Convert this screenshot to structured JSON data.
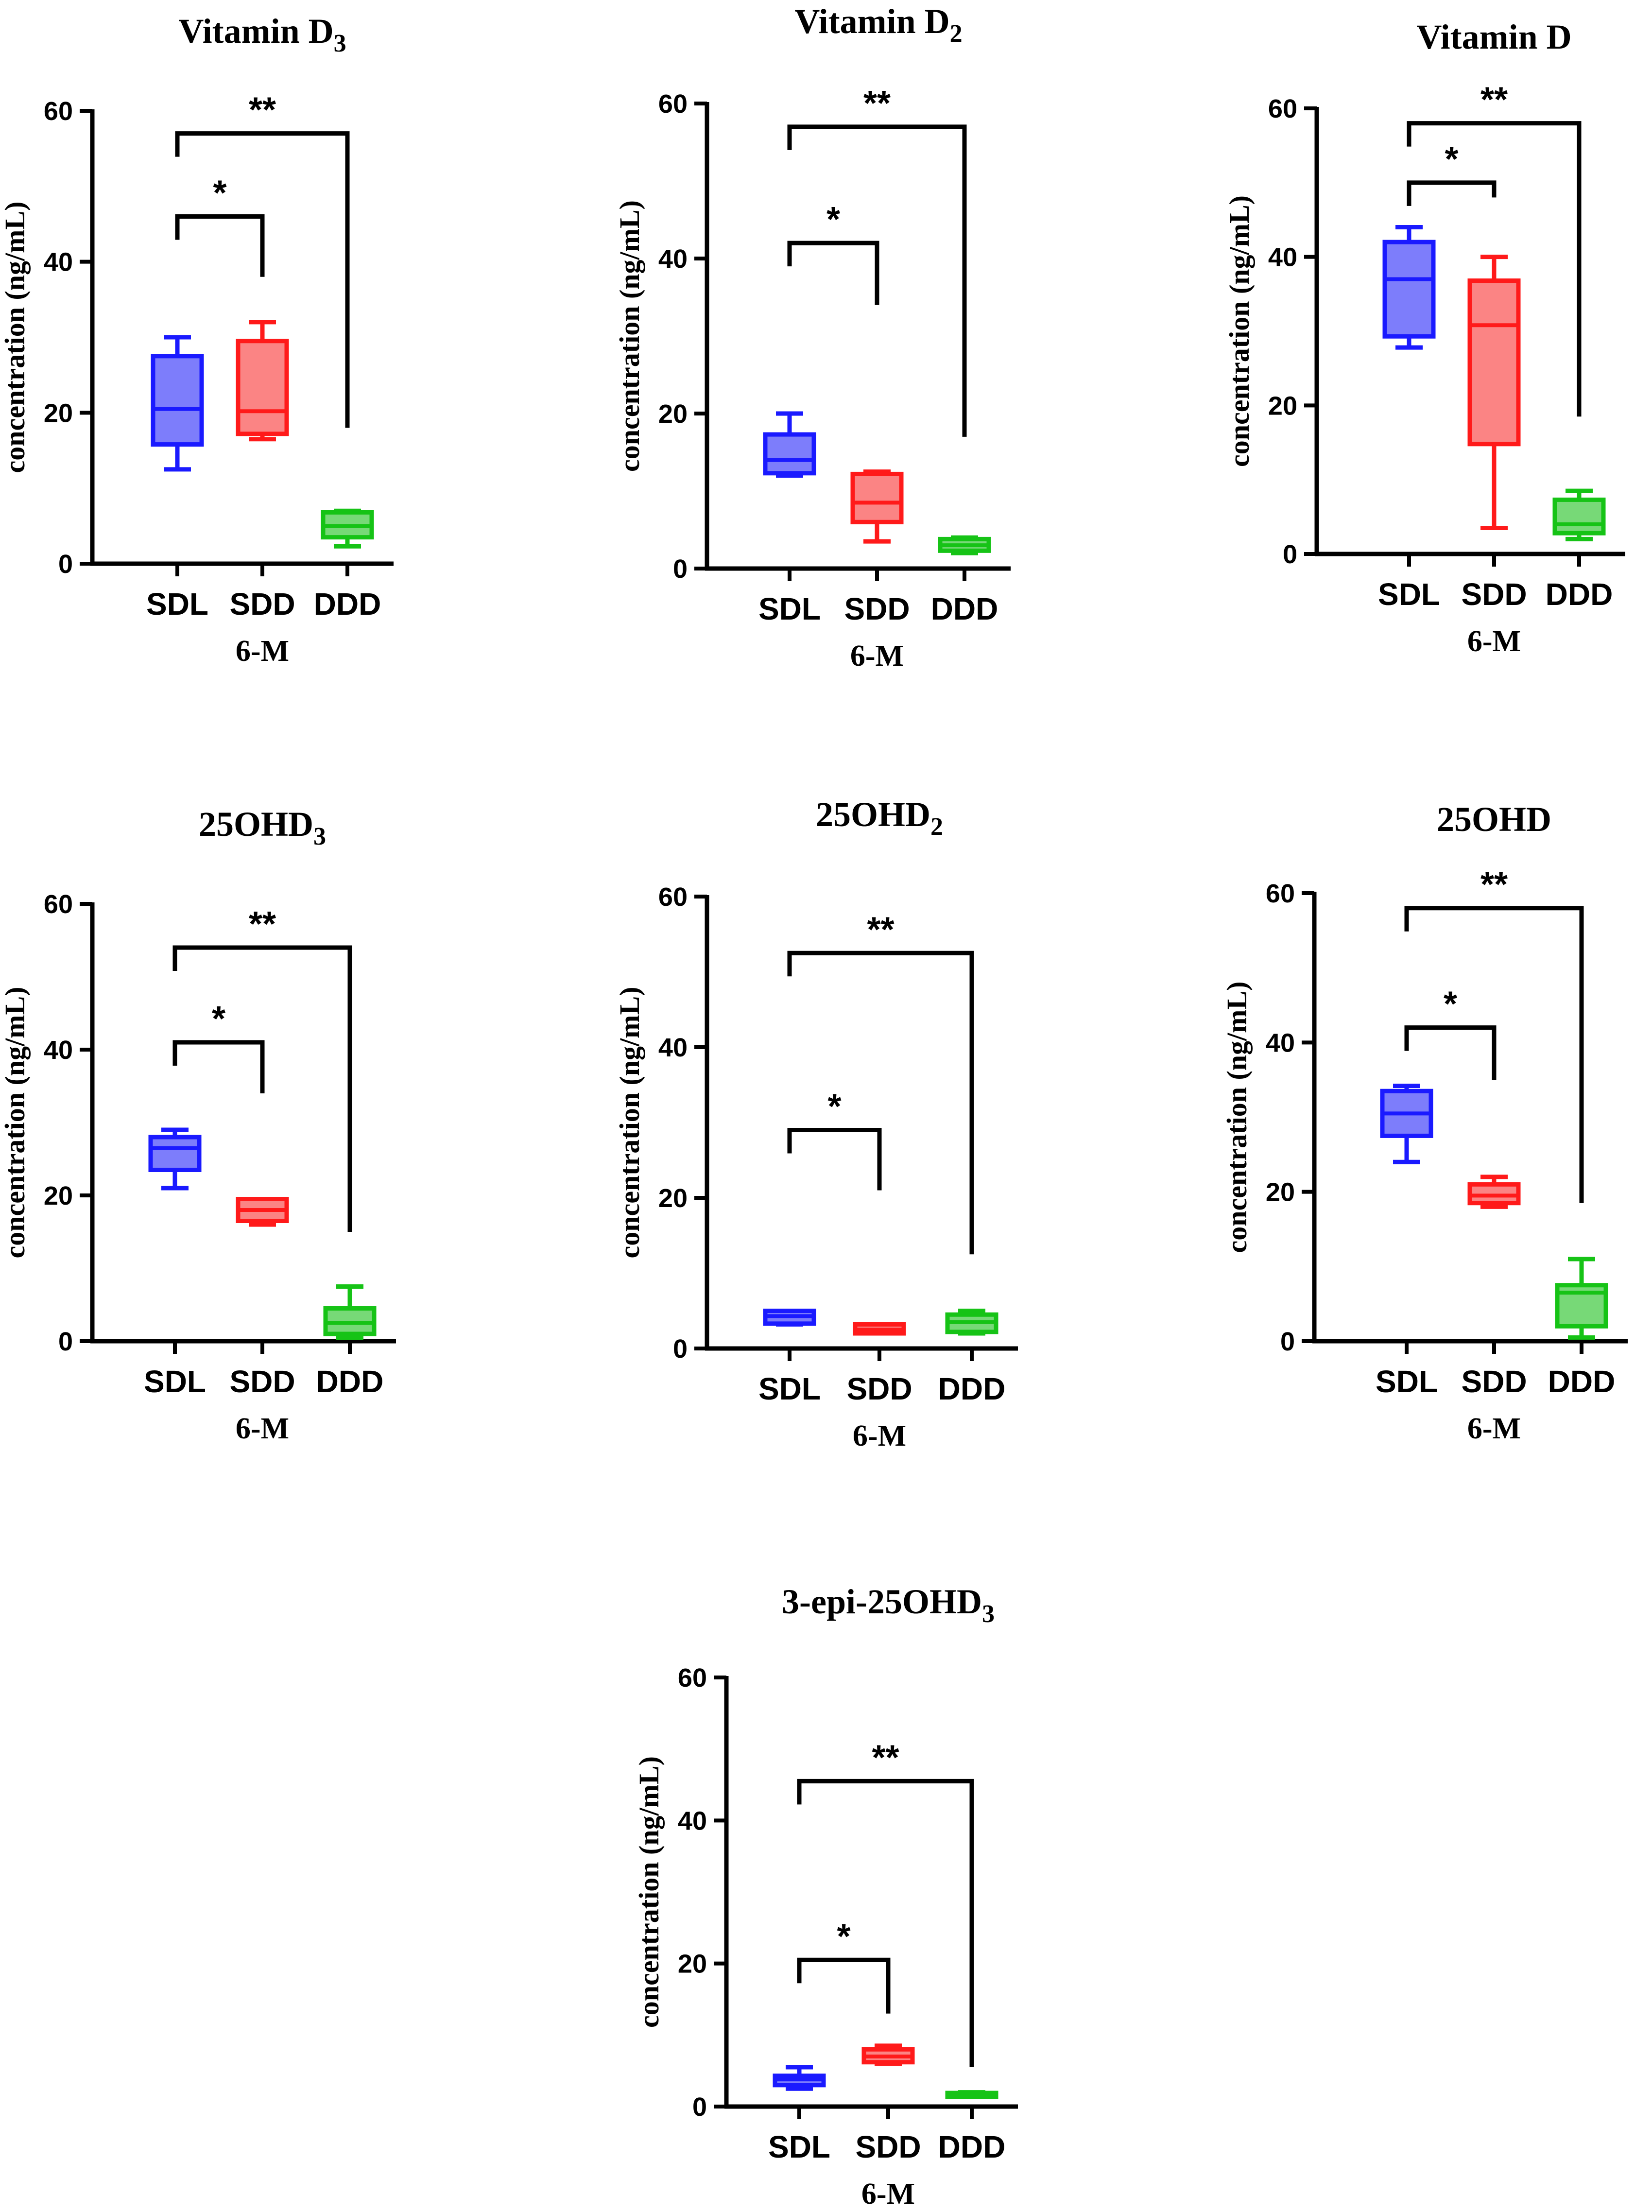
{
  "chart_data": [
    {
      "type": "box",
      "title": "Vitamin D",
      "title_sub": "3",
      "ylabel": "concentration (ng/mL)",
      "xlabel": "6-M",
      "ylim": [
        0,
        60
      ],
      "yticks": [
        0,
        20,
        40,
        60
      ],
      "categories": [
        "SDL",
        "SDD",
        "DDD"
      ],
      "boxes": [
        {
          "group": "SDL",
          "min": 12.5,
          "q1": 15.8,
          "median": 20.5,
          "q3": 27.5,
          "max": 30.0
        },
        {
          "group": "SDD",
          "min": 16.5,
          "q1": 17.2,
          "median": 20.2,
          "q3": 29.5,
          "max": 32.0
        },
        {
          "group": "DDD",
          "min": 2.3,
          "q1": 3.5,
          "median": 5.0,
          "q3": 6.8,
          "max": 7.0
        }
      ],
      "significance": [
        {
          "from": "SDL",
          "to": "SDD",
          "label": "*",
          "y": 46,
          "right_drop": 38
        },
        {
          "from": "SDL",
          "to": "DDD",
          "label": "**",
          "y": 57,
          "right_drop": 18
        }
      ]
    },
    {
      "type": "box",
      "title": "Vitamin D",
      "title_sub": "2",
      "ylabel": "concentration (ng/mL)",
      "xlabel": "6-M",
      "ylim": [
        0,
        60
      ],
      "yticks": [
        0,
        20,
        40,
        60
      ],
      "categories": [
        "SDL",
        "SDD",
        "DDD"
      ],
      "boxes": [
        {
          "group": "SDL",
          "min": 12.0,
          "q1": 12.3,
          "median": 14.0,
          "q3": 17.3,
          "max": 20.0
        },
        {
          "group": "SDD",
          "min": 3.5,
          "q1": 6.0,
          "median": 8.5,
          "q3": 12.2,
          "max": 12.5
        },
        {
          "group": "DDD",
          "min": 2.0,
          "q1": 2.3,
          "median": 3.0,
          "q3": 3.8,
          "max": 4.0
        }
      ],
      "significance": [
        {
          "from": "SDL",
          "to": "SDD",
          "label": "*",
          "y": 42,
          "right_drop": 34
        },
        {
          "from": "SDL",
          "to": "DDD",
          "label": "**",
          "y": 57,
          "right_drop": 17
        }
      ]
    },
    {
      "type": "box",
      "title": "Vitamin D",
      "title_sub": "",
      "ylabel": "concentration (ng/mL)",
      "xlabel": "6-M",
      "ylim": [
        0,
        60
      ],
      "yticks": [
        0,
        20,
        40,
        60
      ],
      "categories": [
        "SDL",
        "SDD",
        "DDD"
      ],
      "boxes": [
        {
          "group": "SDL",
          "min": 27.8,
          "q1": 29.3,
          "median": 37.0,
          "q3": 42.0,
          "max": 44.0
        },
        {
          "group": "SDD",
          "min": 3.5,
          "q1": 14.8,
          "median": 30.8,
          "q3": 36.8,
          "max": 40.0
        },
        {
          "group": "DDD",
          "min": 2.0,
          "q1": 2.8,
          "median": 4.0,
          "q3": 7.3,
          "max": 8.5
        }
      ],
      "significance": [
        {
          "from": "SDL",
          "to": "SDD",
          "label": "*",
          "y": 50,
          "right_drop": 48
        },
        {
          "from": "SDL",
          "to": "DDD",
          "label": "**",
          "y": 58,
          "right_drop": 18.5
        }
      ]
    },
    {
      "type": "box",
      "title": "25OHD",
      "title_sub": "3",
      "ylabel": "concentration (ng/mL)",
      "xlabel": "6-M",
      "ylim": [
        0,
        60
      ],
      "yticks": [
        0,
        20,
        40,
        60
      ],
      "categories": [
        "SDL",
        "SDD",
        "DDD"
      ],
      "boxes": [
        {
          "group": "SDL",
          "min": 21.0,
          "q1": 23.5,
          "median": 26.5,
          "q3": 28.0,
          "max": 29.0
        },
        {
          "group": "SDD",
          "min": 16.0,
          "q1": 16.5,
          "median": 18.0,
          "q3": 19.5,
          "max": 19.5
        },
        {
          "group": "DDD",
          "min": 0.5,
          "q1": 1.0,
          "median": 2.5,
          "q3": 4.5,
          "max": 7.5
        }
      ],
      "significance": [
        {
          "from": "SDL",
          "to": "SDD",
          "label": "*",
          "y": 41,
          "right_drop": 34
        },
        {
          "from": "SDL",
          "to": "DDD",
          "label": "**",
          "y": 54,
          "right_drop": 15
        }
      ]
    },
    {
      "type": "box",
      "title": "25OHD",
      "title_sub": "2",
      "ylabel": "concentration (ng/mL)",
      "xlabel": "6-M",
      "ylim": [
        0,
        60
      ],
      "yticks": [
        0,
        20,
        40,
        60
      ],
      "categories": [
        "SDL",
        "SDD",
        "DDD"
      ],
      "boxes": [
        {
          "group": "SDL",
          "min": 3.2,
          "q1": 3.3,
          "median": 4.3,
          "q3": 5.0,
          "max": 5.0
        },
        {
          "group": "SDD",
          "min": 2.0,
          "q1": 2.0,
          "median": 2.5,
          "q3": 3.2,
          "max": 3.2
        },
        {
          "group": "DDD",
          "min": 2.0,
          "q1": 2.2,
          "median": 3.5,
          "q3": 4.5,
          "max": 5.0
        }
      ],
      "significance": [
        {
          "from": "SDL",
          "to": "SDD",
          "label": "*",
          "y": 29,
          "right_drop": 21
        },
        {
          "from": "SDL",
          "to": "DDD",
          "label": "**",
          "y": 52.5,
          "right_drop": 12.5
        }
      ]
    },
    {
      "type": "box",
      "title": "25OHD",
      "title_sub": "",
      "ylabel": "concentration (ng/mL)",
      "xlabel": "6-M",
      "ylim": [
        0,
        60
      ],
      "yticks": [
        0,
        20,
        40,
        60
      ],
      "categories": [
        "SDL",
        "SDD",
        "DDD"
      ],
      "boxes": [
        {
          "group": "SDL",
          "min": 24.0,
          "q1": 27.5,
          "median": 30.5,
          "q3": 33.5,
          "max": 34.2
        },
        {
          "group": "SDD",
          "min": 18.0,
          "q1": 18.5,
          "median": 19.5,
          "q3": 21.0,
          "max": 22.0
        },
        {
          "group": "DDD",
          "min": 0.5,
          "q1": 2.0,
          "median": 6.5,
          "q3": 7.5,
          "max": 11.0
        }
      ],
      "significance": [
        {
          "from": "SDL",
          "to": "SDD",
          "label": "*",
          "y": 42,
          "right_drop": 35
        },
        {
          "from": "SDL",
          "to": "DDD",
          "label": "**",
          "y": 58,
          "right_drop": 18.5
        }
      ]
    },
    {
      "type": "box",
      "title": "3-epi-25OHD",
      "title_sub": "3",
      "ylabel": "concentration (ng/mL)",
      "xlabel": "6-M",
      "ylim": [
        0,
        60
      ],
      "yticks": [
        0,
        20,
        40,
        60
      ],
      "categories": [
        "SDL",
        "SDD",
        "DDD"
      ],
      "boxes": [
        {
          "group": "SDL",
          "min": 2.5,
          "q1": 3.0,
          "median": 3.8,
          "q3": 4.3,
          "max": 5.5
        },
        {
          "group": "SDD",
          "min": 6.0,
          "q1": 6.2,
          "median": 7.0,
          "q3": 8.0,
          "max": 8.5
        },
        {
          "group": "DDD",
          "min": 1.5,
          "q1": 1.6,
          "median": 1.8,
          "q3": 1.9,
          "max": 2.0
        }
      ],
      "significance": [
        {
          "from": "SDL",
          "to": "SDD",
          "label": "*",
          "y": 20.5,
          "right_drop": 13
        },
        {
          "from": "SDL",
          "to": "DDD",
          "label": "**",
          "y": 45.5,
          "right_drop": 5.5
        }
      ]
    }
  ],
  "colors": {
    "SDL_stroke": "#1a1aff",
    "SDL_fill": "#7d7dfb",
    "SDD_stroke": "#ff1a1a",
    "SDD_fill": "#fb8484",
    "DDD_stroke": "#16c316",
    "DDD_fill": "#77d977",
    "axis": "#000000"
  }
}
